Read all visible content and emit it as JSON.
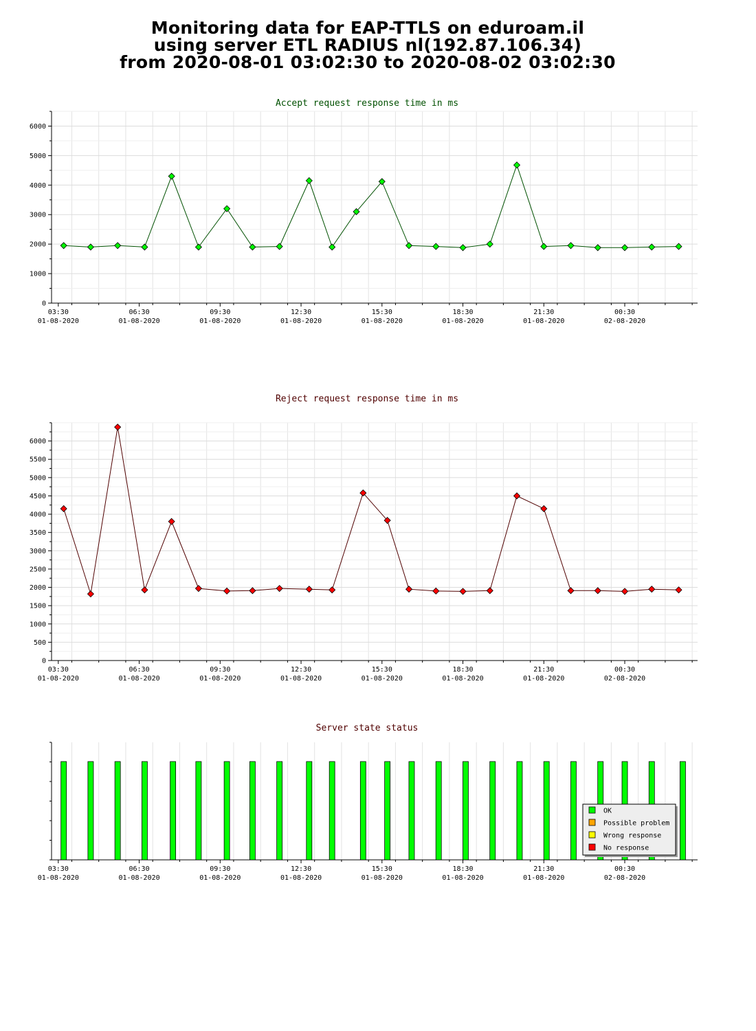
{
  "header": {
    "line1": "Monitoring data for EAP-TTLS on eduroam.il",
    "line2": "using server ETL RADIUS nl(192.87.106.34)",
    "line3": "from 2020-08-01 03:02:30 to 2020-08-02 03:02:30"
  },
  "colors": {
    "ok": "#00ff00",
    "possible_problem": "#ffa500",
    "wrong_response": "#ffff00",
    "no_response": "#ff0000",
    "accept_title": "#005000",
    "reject_title": "#500000"
  },
  "chart_data": [
    {
      "type": "line",
      "title": "Accept request response time in ms",
      "xlabel": "",
      "ylabel": "",
      "ylim": [
        0,
        6500
      ],
      "yticks": [
        0,
        1000,
        2000,
        3000,
        4000,
        5000,
        6000
      ],
      "x_tick_labels": [
        {
          "time": "03:30",
          "date": "01-08-2020"
        },
        {
          "time": "06:30",
          "date": "01-08-2020"
        },
        {
          "time": "09:30",
          "date": "01-08-2020"
        },
        {
          "time": "12:30",
          "date": "01-08-2020"
        },
        {
          "time": "15:30",
          "date": "01-08-2020"
        },
        {
          "time": "18:30",
          "date": "01-08-2020"
        },
        {
          "time": "21:30",
          "date": "01-08-2020"
        },
        {
          "time": "00:30",
          "date": "02-08-2020"
        }
      ],
      "x_hours": [
        3.7,
        4.7,
        5.7,
        6.7,
        7.7,
        8.7,
        9.75,
        10.7,
        11.7,
        12.8,
        13.65,
        14.55,
        15.5,
        16.5,
        17.5,
        18.5,
        19.5,
        20.5,
        21.5,
        22.5,
        23.5,
        24.5,
        25.5,
        26.5
      ],
      "values": [
        1950,
        1900,
        1950,
        1900,
        4300,
        1900,
        3200,
        1900,
        1920,
        4150,
        1900,
        3100,
        4120,
        1950,
        1920,
        1880,
        2000,
        4680,
        1920,
        1950,
        1880,
        1880,
        1900,
        1920
      ],
      "marker_color": "#00ff00",
      "line_color": "#005000"
    },
    {
      "type": "line",
      "title": "Reject request response time in ms",
      "xlabel": "",
      "ylabel": "",
      "ylim": [
        0,
        6500
      ],
      "yticks": [
        0,
        500,
        1000,
        1500,
        2000,
        2500,
        3000,
        3500,
        4000,
        4500,
        5000,
        5500,
        6000
      ],
      "x_tick_labels": [
        {
          "time": "03:30",
          "date": "01-08-2020"
        },
        {
          "time": "06:30",
          "date": "01-08-2020"
        },
        {
          "time": "09:30",
          "date": "01-08-2020"
        },
        {
          "time": "12:30",
          "date": "01-08-2020"
        },
        {
          "time": "15:30",
          "date": "01-08-2020"
        },
        {
          "time": "18:30",
          "date": "01-08-2020"
        },
        {
          "time": "21:30",
          "date": "01-08-2020"
        },
        {
          "time": "00:30",
          "date": "02-08-2020"
        }
      ],
      "x_hours": [
        3.7,
        4.7,
        5.7,
        6.7,
        7.7,
        8.7,
        9.75,
        10.7,
        11.7,
        12.8,
        13.65,
        14.8,
        15.7,
        16.5,
        17.5,
        18.5,
        19.5,
        20.5,
        21.5,
        22.5,
        23.5,
        24.5,
        25.5,
        26.5
      ],
      "values": [
        4150,
        1820,
        6380,
        1930,
        3800,
        1970,
        1900,
        1910,
        1970,
        1950,
        1930,
        4580,
        3830,
        1950,
        1900,
        1890,
        1910,
        4500,
        4150,
        1910,
        1910,
        1890,
        1950,
        1930
      ],
      "marker_color": "#ff0000",
      "line_color": "#500000"
    },
    {
      "type": "bar",
      "title": "Server state status",
      "xlabel": "",
      "ylabel": "",
      "x_tick_labels": [
        {
          "time": "03:30",
          "date": "01-08-2020"
        },
        {
          "time": "06:30",
          "date": "01-08-2020"
        },
        {
          "time": "09:30",
          "date": "01-08-2020"
        },
        {
          "time": "12:30",
          "date": "01-08-2020"
        },
        {
          "time": "15:30",
          "date": "01-08-2020"
        },
        {
          "time": "18:30",
          "date": "01-08-2020"
        },
        {
          "time": "21:30",
          "date": "01-08-2020"
        },
        {
          "time": "00:30",
          "date": "02-08-2020"
        }
      ],
      "x_hours": [
        3.7,
        4.7,
        5.7,
        6.7,
        7.75,
        8.7,
        9.75,
        10.7,
        11.7,
        12.8,
        13.65,
        14.8,
        15.7,
        16.6,
        17.6,
        18.6,
        19.6,
        20.6,
        21.6,
        22.6,
        23.6,
        24.5,
        25.5,
        26.65
      ],
      "states": [
        "OK",
        "OK",
        "OK",
        "OK",
        "OK",
        "OK",
        "OK",
        "OK",
        "OK",
        "OK",
        "OK",
        "OK",
        "OK",
        "OK",
        "OK",
        "OK",
        "OK",
        "OK",
        "OK",
        "OK",
        "OK",
        "OK",
        "OK",
        "OK"
      ],
      "legend": {
        "placement": "bottom-right",
        "entries": [
          {
            "label": "OK",
            "color": "#00ff00"
          },
          {
            "label": "Possible problem",
            "color": "#ffa500"
          },
          {
            "label": "Wrong response",
            "color": "#ffff00"
          },
          {
            "label": "No response",
            "color": "#ff0000"
          }
        ]
      }
    }
  ]
}
